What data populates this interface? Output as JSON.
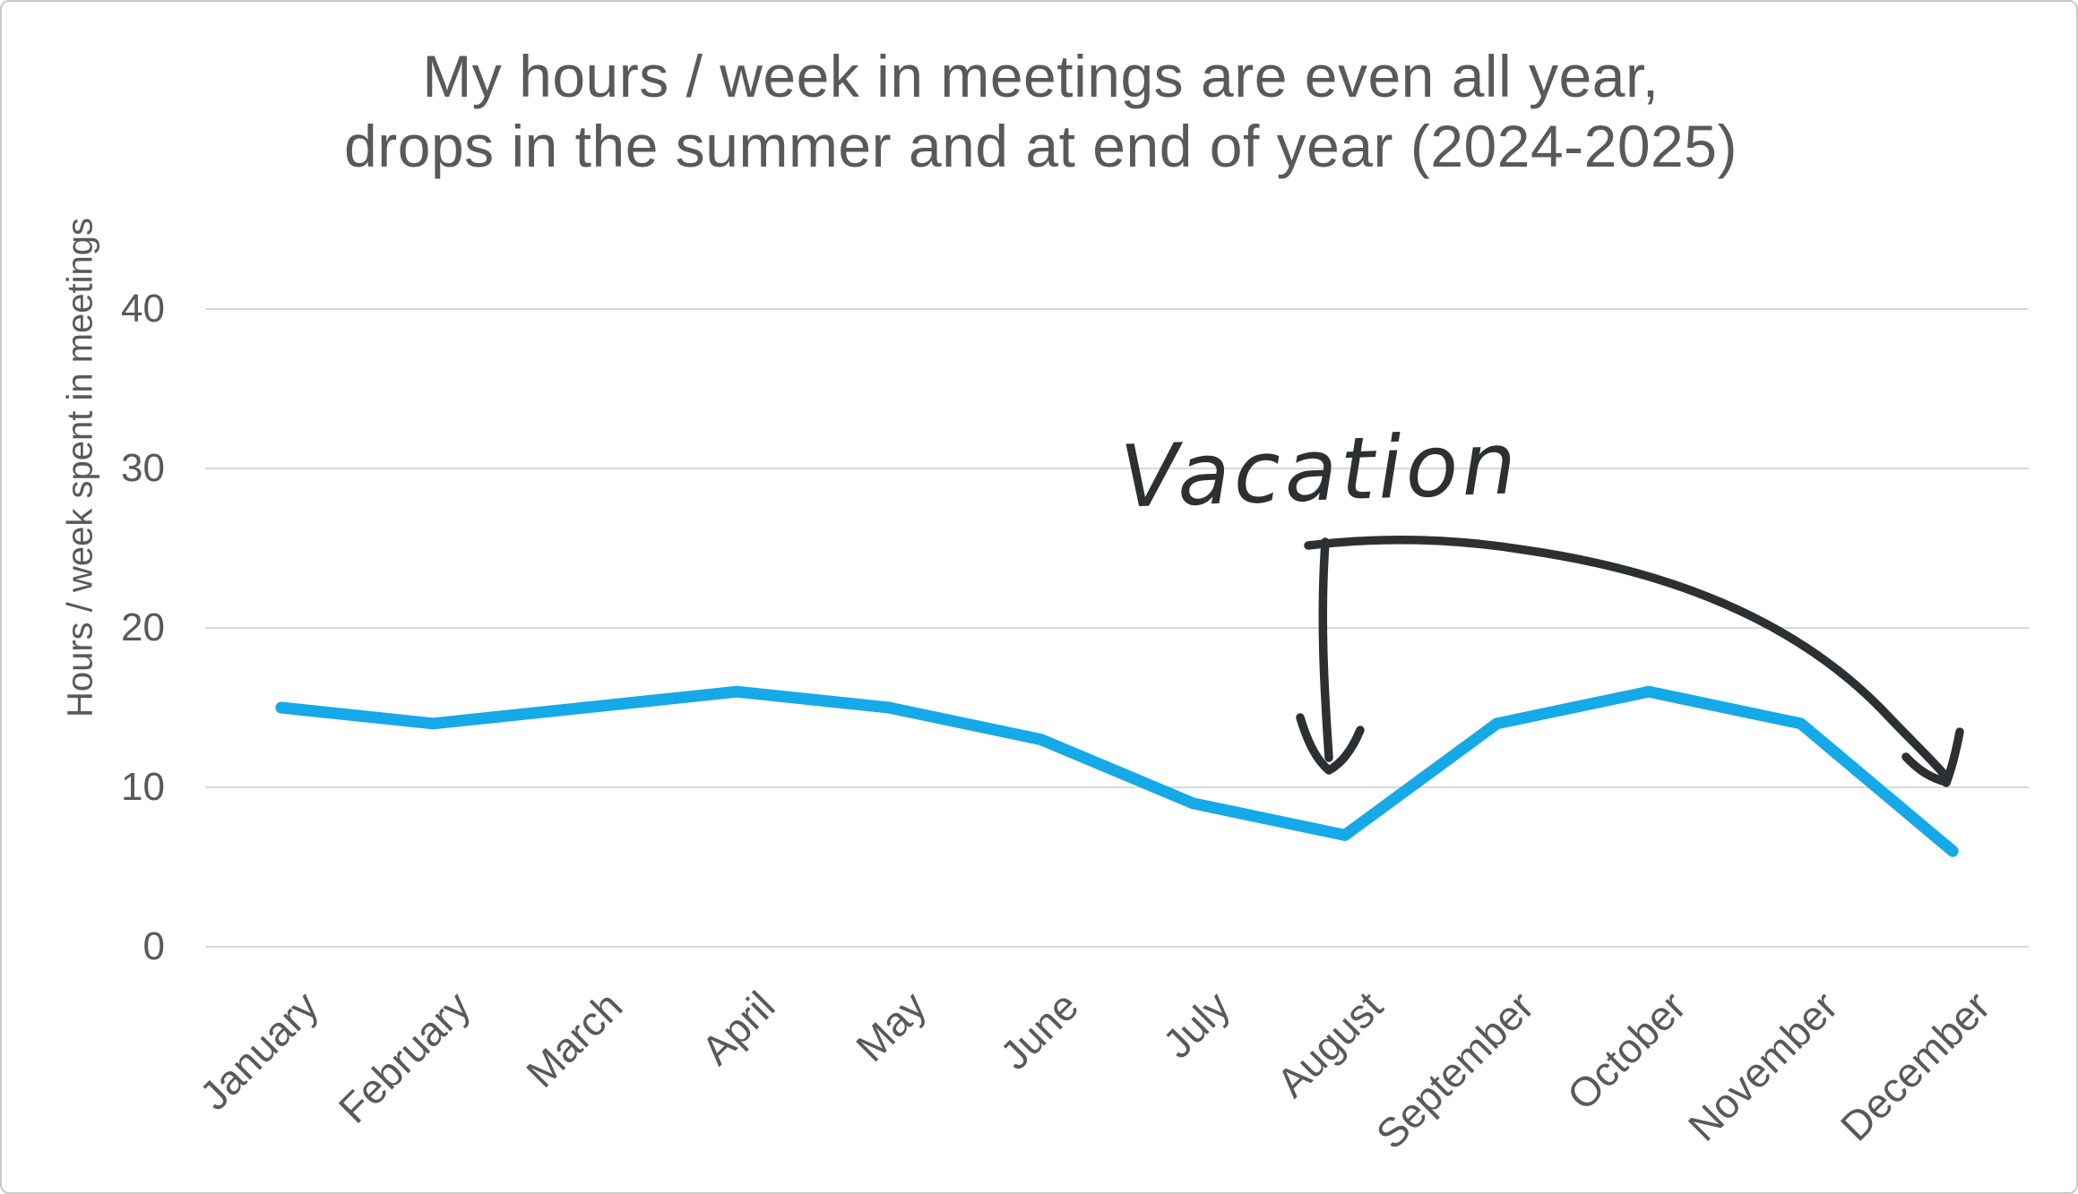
{
  "chart_data": {
    "type": "line",
    "title_lines": [
      "My hours / week in meetings are even all year,",
      "drops in the summer and at end of year (2024-2025)"
    ],
    "ylabel": "Hours / week spent in meetings",
    "xlabel": "",
    "categories": [
      "January",
      "February",
      "March",
      "April",
      "May",
      "June",
      "July",
      "August",
      "September",
      "October",
      "November",
      "December"
    ],
    "series": [
      {
        "name": "Hours / week in meetings",
        "values": [
          15,
          14,
          15,
          16,
          15,
          13,
          9,
          7,
          14,
          16,
          14,
          6
        ]
      }
    ],
    "ylim": [
      0,
      40
    ],
    "yticks": [
      0,
      10,
      20,
      30,
      40
    ],
    "grid": true,
    "legend_position": "none",
    "x_label_rotation_deg": 45,
    "annotation": {
      "label": "Vacation",
      "points_to": [
        "August",
        "December"
      ]
    },
    "colors": {
      "line": "#16a9e8",
      "ink": "#2d3032",
      "text": "#595959",
      "grid": "#d9d9d9",
      "frame": "#c8c8c8",
      "background": "#ffffff"
    }
  }
}
